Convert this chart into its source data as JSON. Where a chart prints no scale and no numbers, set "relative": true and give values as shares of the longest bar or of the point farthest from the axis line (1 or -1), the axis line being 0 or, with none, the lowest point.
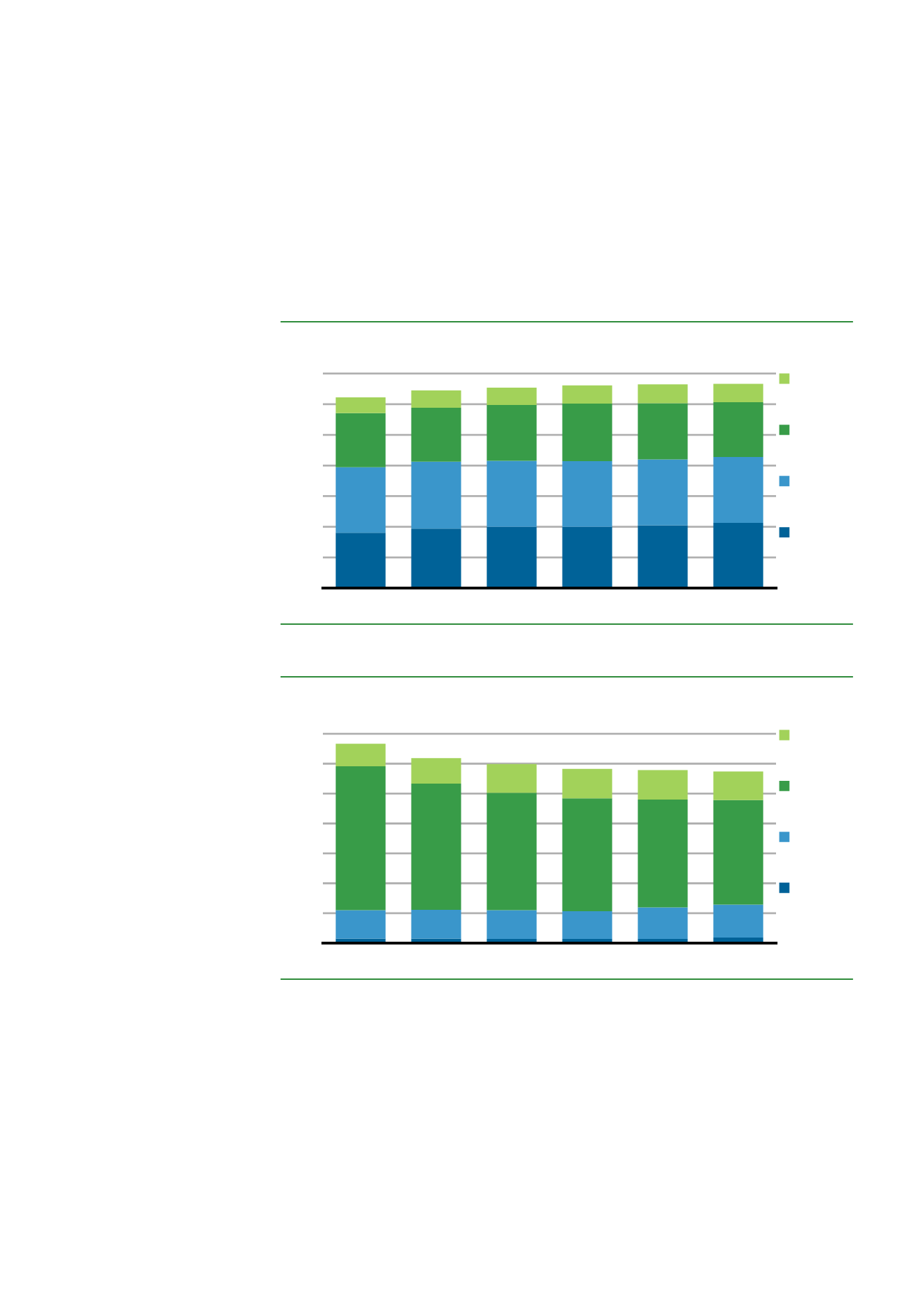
{
  "chart_data": [
    {
      "type": "bar",
      "stacked": true,
      "relative": true,
      "grid": "y",
      "categories": [
        null,
        null,
        null,
        null,
        null,
        null
      ],
      "series": [
        {
          "color": "#006298",
          "values": [
            0.271,
            0.291,
            0.3,
            0.3,
            0.307,
            0.319
          ]
        },
        {
          "color": "#3a96cb",
          "values": [
            0.321,
            0.328,
            0.323,
            0.321,
            0.323,
            0.323
          ]
        },
        {
          "color": "#389c48",
          "values": [
            0.264,
            0.264,
            0.273,
            0.282,
            0.275,
            0.268
          ]
        },
        {
          "color": "#a2d25a",
          "values": [
            0.078,
            0.085,
            0.085,
            0.089,
            0.092,
            0.09
          ]
        }
      ]
    },
    {
      "type": "bar",
      "stacked": true,
      "relative": true,
      "grid": "y",
      "categories": [
        null,
        null,
        null,
        null,
        null,
        null
      ],
      "series": [
        {
          "color": "#006298",
          "values": [
            0.023,
            0.023,
            0.021,
            0.021,
            0.021,
            0.028
          ]
        },
        {
          "color": "#3a96cb",
          "values": [
            0.142,
            0.144,
            0.144,
            0.139,
            0.158,
            0.165
          ]
        },
        {
          "color": "#389c48",
          "values": [
            0.722,
            0.633,
            0.589,
            0.566,
            0.541,
            0.524
          ]
        },
        {
          "color": "#a2d25a",
          "values": [
            0.113,
            0.128,
            0.144,
            0.148,
            0.148,
            0.144
          ]
        }
      ]
    }
  ]
}
